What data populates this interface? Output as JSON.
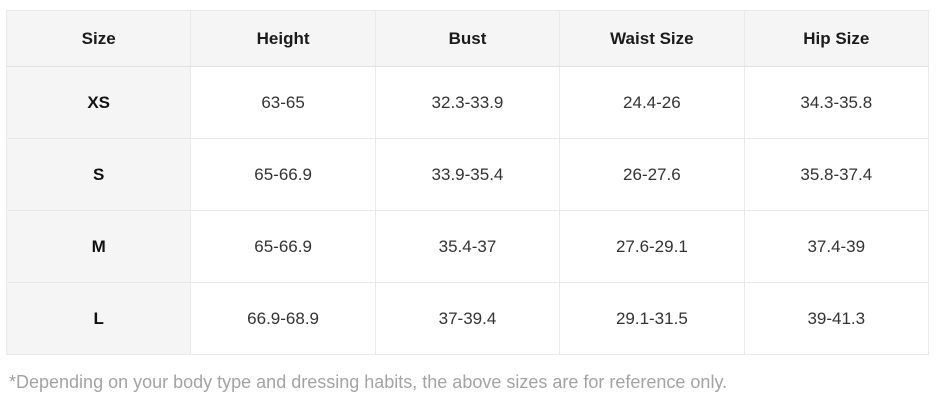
{
  "table": {
    "columns": {
      "size": "Size",
      "height": "Height",
      "bust": "Bust",
      "waist": "Waist Size",
      "hip": "Hip Size"
    },
    "rows": [
      {
        "size": "XS",
        "height": "63-65",
        "bust": "32.3-33.9",
        "waist": "24.4-26",
        "hip": "34.3-35.8"
      },
      {
        "size": "S",
        "height": "65-66.9",
        "bust": "33.9-35.4",
        "waist": "26-27.6",
        "hip": "35.8-37.4"
      },
      {
        "size": "M",
        "height": "65-66.9",
        "bust": "35.4-37",
        "waist": "27.6-29.1",
        "hip": "37.4-39"
      },
      {
        "size": "L",
        "height": "66.9-68.9",
        "bust": "37-39.4",
        "waist": "29.1-31.5",
        "hip": "39-41.3"
      }
    ]
  },
  "footnote": "*Depending on your body type and dressing habits, the above sizes are for reference only.",
  "colors": {
    "header_background": "#f5f5f5",
    "row_label_background": "#f5f5f5",
    "grid_border": "#e9e9e9",
    "body_text": "#333333",
    "header_text": "#1b1b1b",
    "footnote_text": "#a3a3a3"
  }
}
